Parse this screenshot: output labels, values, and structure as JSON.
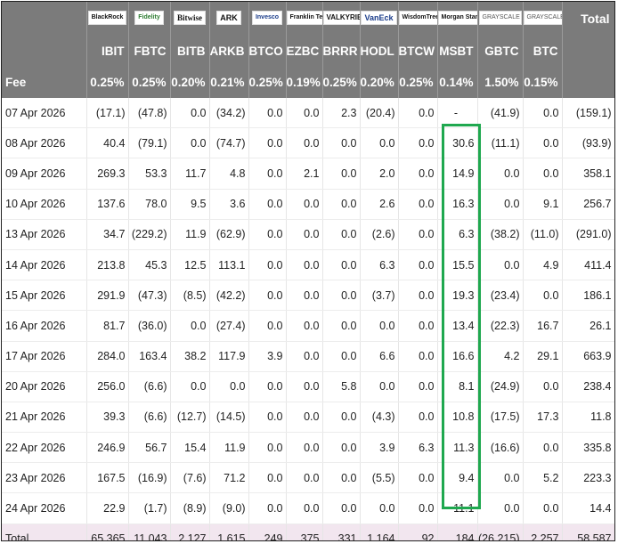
{
  "header": {
    "logos": [
      "BlackRock",
      "Fidelity",
      "Bitwise",
      "ARK",
      "Invesco",
      "Franklin Templeton",
      "VALKYRIE",
      "VanEck",
      "WisdomTree",
      "Morgan Stanley",
      "GRAYSCALE",
      "GRAYSCALE"
    ],
    "total_label": "Total",
    "tickers": [
      "IBIT",
      "FBTC",
      "BITB",
      "ARKB",
      "BTCO",
      "EZBC",
      "BRRR",
      "HODL",
      "BTCW",
      "MSBT",
      "GBTC",
      "BTC"
    ],
    "fee_label": "Fee",
    "fees": [
      "0.25%",
      "0.25%",
      "0.20%",
      "0.21%",
      "0.25%",
      "0.19%",
      "0.25%",
      "0.20%",
      "0.25%",
      "0.14%",
      "1.50%",
      "0.15%"
    ]
  },
  "rows": [
    {
      "date": "07 Apr 2026",
      "values": [
        "(17.1)",
        "(47.8)",
        "0.0",
        "(34.2)",
        "0.0",
        "0.0",
        "2.3",
        "(20.4)",
        "0.0",
        "-",
        "(41.9)",
        "0.0"
      ],
      "total": "(159.1)"
    },
    {
      "date": "08 Apr 2026",
      "values": [
        "40.4",
        "(79.1)",
        "0.0",
        "(74.7)",
        "0.0",
        "0.0",
        "0.0",
        "0.0",
        "0.0",
        "30.6",
        "(11.1)",
        "0.0"
      ],
      "total": "(93.9)"
    },
    {
      "date": "09 Apr 2026",
      "values": [
        "269.3",
        "53.3",
        "11.7",
        "4.8",
        "0.0",
        "2.1",
        "0.0",
        "2.0",
        "0.0",
        "14.9",
        "0.0",
        "0.0"
      ],
      "total": "358.1"
    },
    {
      "date": "10 Apr 2026",
      "values": [
        "137.6",
        "78.0",
        "9.5",
        "3.6",
        "0.0",
        "0.0",
        "0.0",
        "2.6",
        "0.0",
        "16.3",
        "0.0",
        "9.1"
      ],
      "total": "256.7"
    },
    {
      "date": "13 Apr 2026",
      "values": [
        "34.7",
        "(229.2)",
        "11.9",
        "(62.9)",
        "0.0",
        "0.0",
        "0.0",
        "(2.6)",
        "0.0",
        "6.3",
        "(38.2)",
        "(11.0)"
      ],
      "total": "(291.0)"
    },
    {
      "date": "14 Apr 2026",
      "values": [
        "213.8",
        "45.3",
        "12.5",
        "113.1",
        "0.0",
        "0.0",
        "0.0",
        "6.3",
        "0.0",
        "15.5",
        "0.0",
        "4.9"
      ],
      "total": "411.4"
    },
    {
      "date": "15 Apr 2026",
      "values": [
        "291.9",
        "(47.3)",
        "(8.5)",
        "(42.2)",
        "0.0",
        "0.0",
        "0.0",
        "(3.7)",
        "0.0",
        "19.3",
        "(23.4)",
        "0.0"
      ],
      "total": "186.1"
    },
    {
      "date": "16 Apr 2026",
      "values": [
        "81.7",
        "(36.0)",
        "0.0",
        "(27.4)",
        "0.0",
        "0.0",
        "0.0",
        "0.0",
        "0.0",
        "13.4",
        "(22.3)",
        "16.7"
      ],
      "total": "26.1"
    },
    {
      "date": "17 Apr 2026",
      "values": [
        "284.0",
        "163.4",
        "38.2",
        "117.9",
        "3.9",
        "0.0",
        "0.0",
        "6.6",
        "0.0",
        "16.6",
        "4.2",
        "29.1"
      ],
      "total": "663.9"
    },
    {
      "date": "20 Apr 2026",
      "values": [
        "256.0",
        "(6.6)",
        "0.0",
        "0.0",
        "0.0",
        "0.0",
        "5.8",
        "0.0",
        "0.0",
        "8.1",
        "(24.9)",
        "0.0"
      ],
      "total": "238.4"
    },
    {
      "date": "21 Apr 2026",
      "values": [
        "39.3",
        "(6.6)",
        "(12.7)",
        "(14.5)",
        "0.0",
        "0.0",
        "0.0",
        "(4.3)",
        "0.0",
        "10.8",
        "(17.5)",
        "17.3"
      ],
      "total": "11.8"
    },
    {
      "date": "22 Apr 2026",
      "values": [
        "246.9",
        "56.7",
        "15.4",
        "11.9",
        "0.0",
        "0.0",
        "0.0",
        "3.9",
        "6.3",
        "11.3",
        "(16.6)",
        "0.0"
      ],
      "total": "335.8"
    },
    {
      "date": "23 Apr 2026",
      "values": [
        "167.5",
        "(16.9)",
        "(7.6)",
        "71.2",
        "0.0",
        "0.0",
        "0.0",
        "(5.5)",
        "0.0",
        "9.4",
        "0.0",
        "5.2"
      ],
      "total": "223.3"
    },
    {
      "date": "24 Apr 2026",
      "values": [
        "22.9",
        "(1.7)",
        "(8.9)",
        "(9.0)",
        "0.0",
        "0.0",
        "0.0",
        "0.0",
        "0.0",
        "11.1",
        "0.0",
        "0.0"
      ],
      "total": "14.4"
    }
  ],
  "totals": {
    "label": "Total",
    "values": [
      "65,365",
      "11,043",
      "2,127",
      "1,615",
      "249",
      "375",
      "331",
      "1,164",
      "92",
      "184",
      "(26,215)",
      "2,257"
    ],
    "total": "58,587"
  },
  "colors": {
    "header_bg": "#7b7b7b",
    "negative": "#c0392b",
    "highlight": "#1fa84f",
    "total_row_bg": "#f2e6ef"
  }
}
